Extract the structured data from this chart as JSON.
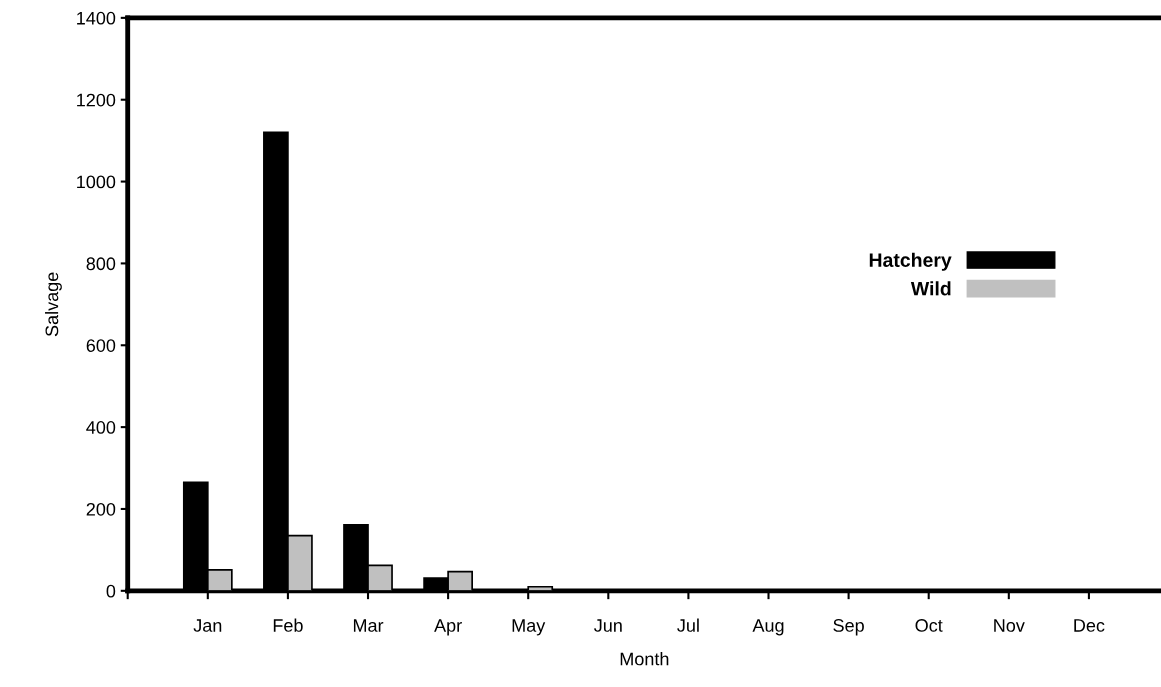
{
  "chart_data": {
    "type": "bar",
    "xlabel": "Month",
    "ylabel": "Salvage",
    "categories": [
      "Jan",
      "Feb",
      "Mar",
      "Apr",
      "May",
      "Jun",
      "Jul",
      "Aug",
      "Sep",
      "Oct",
      "Nov",
      "Dec"
    ],
    "series": [
      {
        "name": "Hatchery",
        "color": "#000000",
        "values": [
          265,
          1120,
          161,
          31,
          0,
          0,
          0,
          0,
          0,
          0,
          0,
          0
        ]
      },
      {
        "name": "Wild",
        "color": "#c0c0c0",
        "values": [
          51,
          135,
          62,
          47,
          10,
          0,
          0,
          0,
          0,
          0,
          0,
          0
        ]
      }
    ],
    "ylim": [
      0,
      1400
    ],
    "yticks": [
      0,
      200,
      400,
      600,
      800,
      1000,
      1200,
      1400
    ],
    "grid": false,
    "legend": "right"
  }
}
